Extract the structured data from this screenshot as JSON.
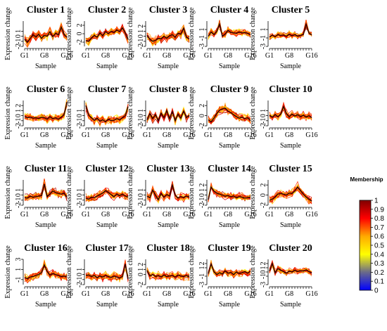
{
  "chart_data": {
    "type": "line",
    "x_label": "Sample",
    "y_label": "Expression change",
    "x_ticks": [
      "G1",
      "G8",
      "G16"
    ],
    "n_samples": 16,
    "legend": {
      "title": "Membership",
      "ticks": [
        "0",
        "0.1",
        "0.2",
        "0.3",
        "0.4",
        "0.5",
        "0.6",
        "0.7",
        "0.8",
        "0.9",
        "1"
      ],
      "colors": [
        "#0000ff",
        "#ffff00",
        "#ff0000",
        "#800000"
      ]
    },
    "panels": [
      {
        "title": "Cluster 1",
        "ylim": [
          -2,
          3
        ],
        "yticks": [
          "-2",
          "-1",
          "0",
          "1"
        ],
        "profile": [
          -0.6,
          -1.2,
          -0.4,
          0.3,
          -0.2,
          0.4,
          -0.4,
          0.2,
          0.0,
          0.9,
          -0.1,
          0.6,
          0.3,
          1.8,
          0.4,
          -0.2
        ]
      },
      {
        "title": "Cluster 2",
        "ylim": [
          -3,
          3
        ],
        "yticks": [
          "-2",
          "0",
          "2"
        ],
        "profile": [
          -1.6,
          -1.8,
          -1.0,
          -0.4,
          -0.8,
          0.2,
          -0.5,
          0.5,
          0.0,
          0.6,
          0.3,
          0.9,
          0.5,
          1.4,
          0.2,
          -1.4
        ]
      },
      {
        "title": "Cluster 3",
        "ylim": [
          -2,
          3
        ],
        "yticks": [
          "-2",
          "-1",
          "0",
          "1",
          "2"
        ],
        "profile": [
          0.2,
          -0.6,
          -1.0,
          -0.8,
          -0.4,
          -0.5,
          0.0,
          -0.4,
          0.1,
          0.3,
          -0.2,
          0.6,
          0.4,
          1.6,
          -0.2,
          -0.5
        ]
      },
      {
        "title": "Cluster 4",
        "ylim": [
          -3,
          3
        ],
        "yticks": [
          "-3",
          "-1",
          "1"
        ],
        "profile": [
          -0.6,
          0.4,
          -0.2,
          0.5,
          2.3,
          -0.6,
          -0.1,
          0.8,
          0.3,
          0.2,
          0.1,
          0.4,
          0.2,
          0.3,
          0.1,
          -0.2
        ]
      },
      {
        "title": "Cluster 5",
        "ylim": [
          -3,
          3
        ],
        "yticks": [
          "-3",
          "-1",
          "1"
        ],
        "profile": [
          -0.8,
          -0.3,
          -0.7,
          -0.2,
          -0.4,
          -0.3,
          -0.6,
          -0.1,
          -0.5,
          -0.2,
          -0.6,
          -0.4,
          -0.2,
          2.3,
          0.2,
          -0.3
        ]
      },
      {
        "title": "Cluster 6",
        "ylim": [
          -2,
          3
        ],
        "yticks": [
          "-2",
          "-1",
          "0",
          "1",
          "2"
        ],
        "profile": [
          -0.2,
          -0.4,
          -0.3,
          -0.5,
          -0.4,
          -0.6,
          -0.3,
          -0.4,
          -0.7,
          -0.2,
          -0.6,
          -0.4,
          -0.7,
          -0.3,
          0.2,
          2.5
        ]
      },
      {
        "title": "Cluster 7",
        "ylim": [
          -2,
          3
        ],
        "yticks": [
          "-2",
          "-1",
          "0",
          "1"
        ],
        "profile": [
          2.0,
          0.1,
          -0.4,
          -0.9,
          -0.5,
          -1.1,
          -0.8,
          -1.2,
          -0.7,
          -1.0,
          -0.9,
          -0.6,
          -0.8,
          -0.4,
          0.0,
          1.8
        ]
      },
      {
        "title": "Cluster 8",
        "ylim": [
          -2,
          3
        ],
        "yticks": [
          "-2",
          "-1",
          "0",
          "1"
        ],
        "profile": [
          -0.8,
          0.4,
          -0.6,
          0.2,
          -1.0,
          0.5,
          -0.4,
          1.0,
          -0.6,
          0.8,
          -1.0,
          0.3,
          -0.5,
          0.9,
          -0.4,
          0.1
        ]
      },
      {
        "title": "Cluster 9",
        "ylim": [
          -2,
          3
        ],
        "yticks": [
          "-2",
          "0",
          "2"
        ],
        "profile": [
          -0.8,
          -1.2,
          -0.5,
          0.4,
          1.1,
          1.3,
          1.5,
          0.9,
          0.6,
          0.2,
          -0.2,
          -0.5,
          -0.3,
          -0.6,
          -0.4,
          -1.0
        ]
      },
      {
        "title": "Cluster 10",
        "ylim": [
          -2,
          3
        ],
        "yticks": [
          "-2",
          "-1",
          "0",
          "1"
        ],
        "profile": [
          0.1,
          -0.3,
          0.2,
          -0.2,
          0.3,
          1.8,
          0.4,
          -0.2,
          0.3,
          -0.1,
          0.2,
          -0.2,
          0.1,
          -0.3,
          0.0,
          -0.4
        ]
      },
      {
        "title": "Cluster 11",
        "ylim": [
          -2,
          3
        ],
        "yticks": [
          "-2",
          "-1",
          "0",
          "1"
        ],
        "profile": [
          -0.5,
          -0.6,
          -0.2,
          -0.4,
          -0.3,
          -0.2,
          -0.1,
          2.2,
          -0.3,
          0.2,
          0.8,
          0.5,
          0.3,
          0.2,
          0.4,
          -0.4
        ]
      },
      {
        "title": "Cluster 12",
        "ylim": [
          -2,
          3
        ],
        "yticks": [
          "-2",
          "-1",
          "0",
          "1"
        ],
        "profile": [
          -0.6,
          -0.8,
          -0.4,
          -0.5,
          -0.2,
          0.1,
          0.4,
          0.9,
          0.5,
          0.1,
          -0.3,
          0.2,
          -0.1,
          0.2,
          -0.2,
          -0.4
        ]
      },
      {
        "title": "Cluster 13",
        "ylim": [
          -2,
          3
        ],
        "yticks": [
          "-2",
          "-1",
          "0",
          "1"
        ],
        "profile": [
          -0.2,
          -0.5,
          1.0,
          0.0,
          -0.9,
          0.3,
          -0.4,
          0.1,
          -0.2,
          2.0,
          0.0,
          -0.6,
          -0.3,
          -0.5,
          -0.2,
          -0.4
        ]
      },
      {
        "title": "Cluster 14",
        "ylim": [
          -2,
          3
        ],
        "yticks": [
          "-2",
          "-1",
          "0",
          "1",
          "2"
        ],
        "profile": [
          -0.9,
          1.6,
          0.8,
          0.4,
          0.2,
          0.0,
          -0.2,
          -0.1,
          -0.3,
          -0.2,
          -0.5,
          -0.3,
          -0.4,
          -0.6,
          -0.5,
          -0.4
        ]
      },
      {
        "title": "Cluster 15",
        "ylim": [
          -2,
          3
        ],
        "yticks": [
          "-2",
          "0",
          "2"
        ],
        "profile": [
          -1.0,
          -0.8,
          -0.4,
          0.2,
          0.3,
          0.2,
          0.0,
          0.4,
          0.3,
          0.8,
          1.6,
          0.9,
          0.2,
          -0.4,
          -0.8,
          -1.2
        ]
      },
      {
        "title": "Cluster 16",
        "ylim": [
          -2,
          3
        ],
        "yticks": [
          "-1",
          "1",
          "3"
        ],
        "profile": [
          -0.6,
          -0.8,
          -0.5,
          -0.4,
          -0.2,
          0.0,
          0.4,
          1.9,
          0.6,
          -0.1,
          0.2,
          0.0,
          -0.2,
          -0.4,
          -0.3,
          -0.5
        ]
      },
      {
        "title": "Cluster 17",
        "ylim": [
          -2,
          3
        ],
        "yticks": [
          "-2",
          "-1",
          "0",
          "1"
        ],
        "profile": [
          -0.2,
          -0.1,
          -0.4,
          -0.2,
          -0.6,
          -0.3,
          -0.5,
          -0.2,
          -0.4,
          -0.6,
          -0.3,
          -0.5,
          -0.7,
          -0.4,
          2.1,
          -0.9
        ]
      },
      {
        "title": "Cluster 18",
        "ylim": [
          -2,
          3
        ],
        "yticks": [
          "-2",
          "0",
          "1",
          "2"
        ],
        "profile": [
          0.8,
          -0.3,
          0.0,
          -0.4,
          -0.2,
          -0.5,
          -0.1,
          -0.4,
          -0.3,
          -0.2,
          -0.5,
          -0.1,
          -0.3,
          -0.4,
          -0.2,
          -0.5
        ]
      },
      {
        "title": "Cluster 19",
        "ylim": [
          -3,
          3
        ],
        "yticks": [
          "-3",
          "-1",
          "1",
          "2"
        ],
        "profile": [
          -0.4,
          1.9,
          0.1,
          -0.6,
          -0.2,
          -0.5,
          0.3,
          -0.3,
          -0.1,
          -0.6,
          0.0,
          -0.4,
          -0.2,
          0.1,
          -0.3,
          0.2
        ]
      },
      {
        "title": "Cluster 20",
        "ylim": [
          -3,
          3
        ],
        "yticks": [
          "-3",
          "-1",
          "0",
          "1",
          "2"
        ],
        "profile": [
          0.2,
          2.0,
          -0.2,
          0.8,
          0.4,
          0.1,
          -0.3,
          0.2,
          0.0,
          0.4,
          0.1,
          0.3,
          0.2,
          0.5,
          0.1,
          -0.2
        ]
      }
    ]
  }
}
